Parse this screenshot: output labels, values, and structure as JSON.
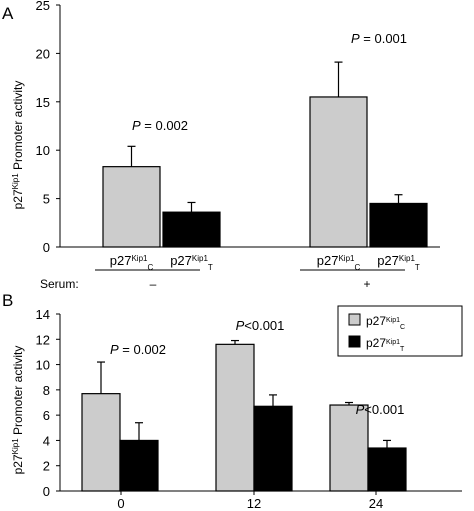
{
  "panels": {
    "a_label": "A",
    "b_label": "B",
    "ylabel_main": "p27",
    "ylabel_sup": "Kip1",
    "ylabel_rest": " Promoter activity"
  },
  "colors": {
    "control": "#cccccc",
    "treatment": "#000000"
  },
  "chart_data": [
    {
      "panel": "A",
      "type": "bar",
      "categories": [
        "p27Kip1C",
        "p27Kip1T",
        "p27Kip1C",
        "p27Kip1T"
      ],
      "category_labels": [
        {
          "base": "p27",
          "sup": "Kip1",
          "sub": "C"
        },
        {
          "base": "p27",
          "sup": "Kip1",
          "sub": "T"
        },
        {
          "base": "p27",
          "sup": "Kip1",
          "sub": "C"
        },
        {
          "base": "p27",
          "sup": "Kip1",
          "sub": "T"
        }
      ],
      "values": [
        8.3,
        3.6,
        15.5,
        4.5
      ],
      "errors": [
        2.1,
        1.0,
        3.6,
        0.9
      ],
      "bar_colors": [
        "control",
        "treatment",
        "control",
        "treatment"
      ],
      "ylim": [
        0,
        25
      ],
      "yticks": [
        0,
        5,
        10,
        15,
        20,
        25
      ],
      "grid": false,
      "annotations": [
        "P = 0.002",
        "P = 0.001"
      ],
      "serum": {
        "label": "Serum:",
        "levels": [
          "–",
          "+"
        ]
      }
    },
    {
      "panel": "B",
      "type": "bar",
      "categories": [
        "0",
        "12",
        "24"
      ],
      "series": [
        {
          "name": "p27Kip1C",
          "legend": {
            "base": "p27",
            "sup": "Kip1",
            "sub": "C"
          },
          "color": "control",
          "values": [
            7.7,
            11.6,
            6.8
          ],
          "errors": [
            2.5,
            0.3,
            0.2
          ]
        },
        {
          "name": "p27Kip1T",
          "legend": {
            "base": "p27",
            "sup": "Kip1",
            "sub": "T"
          },
          "color": "treatment",
          "values": [
            4.0,
            6.7,
            3.4
          ],
          "errors": [
            1.4,
            0.9,
            0.6
          ]
        }
      ],
      "ylim": [
        0,
        14
      ],
      "yticks": [
        0,
        2,
        4,
        6,
        8,
        10,
        12,
        14
      ],
      "grid": false,
      "legend_position": "top-right",
      "annotations": [
        "P = 0.002",
        "P<0.001",
        "P<0.001"
      ]
    }
  ]
}
